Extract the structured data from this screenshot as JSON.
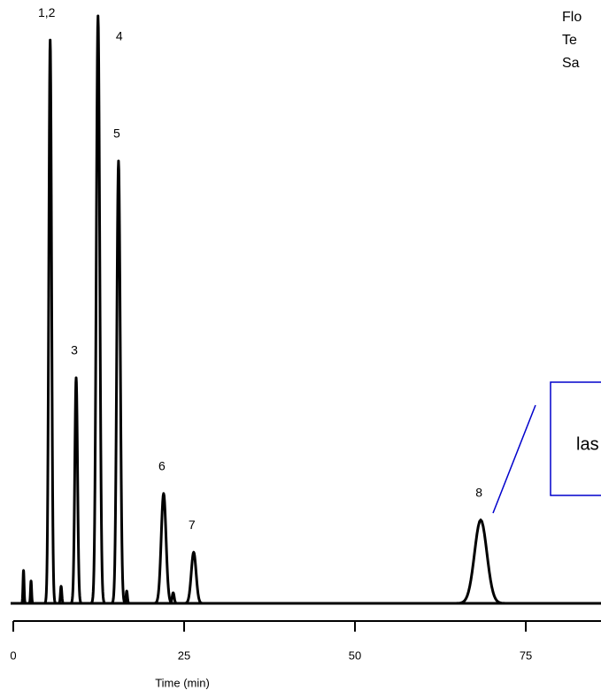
{
  "chart_data": {
    "type": "chromatogram",
    "x_label": "Time (min)",
    "xlim": [
      0,
      86
    ],
    "xticks": [
      0,
      25,
      50,
      75
    ],
    "ylim": [
      0,
      100
    ],
    "categories": [
      null,
      null,
      "1,2",
      null,
      "3",
      "4",
      "5",
      null,
      "6",
      null,
      "7",
      "8"
    ],
    "x": [
      1.5,
      2.6,
      5.4,
      7.0,
      9.2,
      12.4,
      15.4,
      16.6,
      22.0,
      23.4,
      26.4,
      68.4
    ],
    "values": [
      5.6,
      3.8,
      95.9,
      2.9,
      38.4,
      100,
      75.3,
      2.1,
      18.7,
      1.8,
      8.7,
      14.2
    ],
    "widths": [
      0.08,
      0.08,
      0.2,
      0.1,
      0.2,
      0.25,
      0.25,
      0.1,
      0.35,
      0.15,
      0.35,
      0.9
    ],
    "color": "#000000",
    "annotations": [
      "Flo",
      "Te",
      "Sa"
    ],
    "callout": {
      "text": "las",
      "color": "#0000cc"
    }
  }
}
